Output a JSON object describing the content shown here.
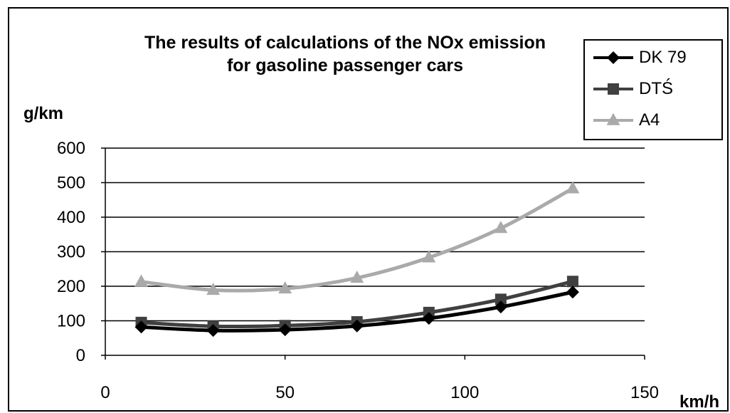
{
  "chart_data": {
    "type": "line",
    "title_line1": "The results of calculations of the NOx emission",
    "title_line2": "for gasoline passenger cars",
    "xlabel": "km/h",
    "ylabel": "g/km",
    "xlim": [
      0,
      150
    ],
    "ylim": [
      0,
      600
    ],
    "xticks": [
      0,
      50,
      100,
      150
    ],
    "yticks": [
      0,
      100,
      200,
      300,
      400,
      500,
      600
    ],
    "grid": "horizontal",
    "legend_position": "top-right",
    "x": [
      10,
      30,
      50,
      70,
      90,
      110,
      130
    ],
    "series": [
      {
        "name": "DK 79",
        "values": [
          82,
          72,
          74,
          85,
          107,
          140,
          183
        ],
        "color": "#000000",
        "marker": "diamond"
      },
      {
        "name": "DTŚ",
        "values": [
          95,
          84,
          86,
          97,
          124,
          162,
          214
        ],
        "color": "#404040",
        "marker": "square"
      },
      {
        "name": "A4",
        "values": [
          213,
          189,
          193,
          224,
          283,
          368,
          483
        ],
        "color": "#aaaaaa",
        "marker": "triangle"
      }
    ]
  }
}
